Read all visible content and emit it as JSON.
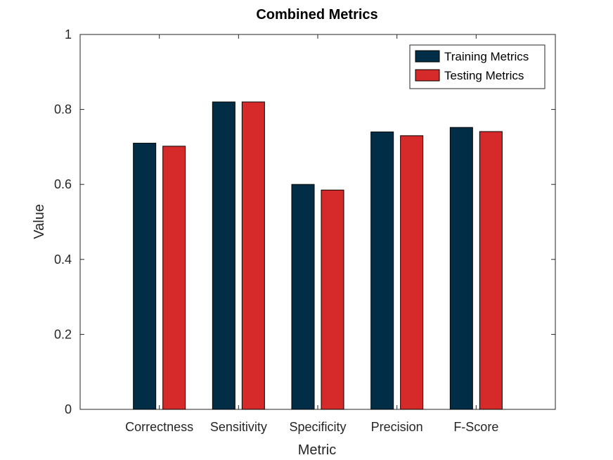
{
  "chart_data": {
    "type": "bar",
    "title": "Combined Metrics",
    "xlabel": "Metric",
    "ylabel": "Value",
    "ylim": [
      0,
      1
    ],
    "yticks": [
      0,
      0.2,
      0.4,
      0.6,
      0.8,
      1
    ],
    "ytick_labels": [
      "0",
      "0.2",
      "0.4",
      "0.6",
      "0.8",
      "1"
    ],
    "categories": [
      "Correctness",
      "Sensitivity",
      "Specificity",
      "Precision",
      "F-Score"
    ],
    "series": [
      {
        "name": "Training Metrics",
        "color": "#022d46",
        "values": [
          0.71,
          0.82,
          0.6,
          0.74,
          0.752
        ]
      },
      {
        "name": "Testing Metrics",
        "color": "#d62a2a",
        "values": [
          0.702,
          0.82,
          0.585,
          0.73,
          0.741
        ]
      }
    ],
    "legend_position": "top-right",
    "grid": false
  }
}
